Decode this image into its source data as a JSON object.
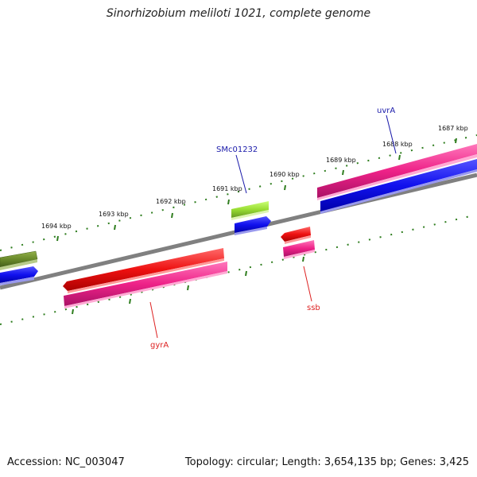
{
  "title": "Sinorhizobium meliloti 1021, complete genome",
  "footer": {
    "accession": "Accession: NC_003047",
    "stats": "Topology: circular; Length: 3,654,135 bp; Genes: 3,425"
  },
  "scale_labels": [
    "1694 kbp",
    "1693 kbp",
    "1692 kbp",
    "1691 kbp",
    "1690 kbp",
    "1689 kbp",
    "1688 kbp",
    "1687 kbp"
  ],
  "gene_labels": {
    "uvrA": "uvrA",
    "SMc01232": "SMc01232",
    "ssb": "ssb",
    "gyrA": "gyrA"
  },
  "colors": {
    "backbone": "#808080",
    "tick": "#2e7d1e",
    "red_gene": "#ee1111",
    "pink_gene": "#ee2288",
    "blue_gene": "#1111ee",
    "green_light": "#99dd33",
    "green_dark": "#6a8a2a",
    "label_blue": "#1a1aaa",
    "label_red": "#dd2222"
  }
}
